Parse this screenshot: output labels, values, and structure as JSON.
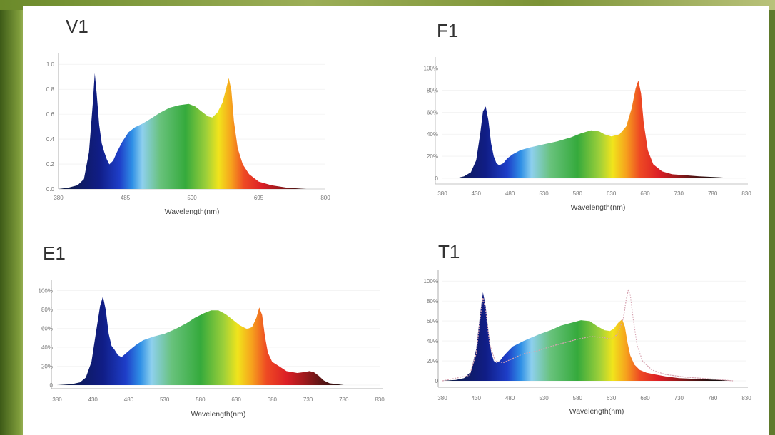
{
  "chart_data": [
    {
      "type": "area",
      "title": "V1",
      "xlabel": "Wavelength(nm)",
      "ylabel": "",
      "x_ticks": [
        "380",
        "485",
        "590",
        "695",
        "800"
      ],
      "y_ticks": [
        "0.0",
        "0.2",
        "0.4",
        "0.6",
        "0.8",
        "1.0"
      ],
      "xlim": [
        380,
        800
      ],
      "ylim": [
        0,
        1.1
      ],
      "x": [
        380,
        395,
        410,
        420,
        428,
        434,
        437,
        440,
        444,
        448,
        452,
        456,
        460,
        466,
        472,
        480,
        490,
        500,
        512,
        525,
        540,
        555,
        570,
        585,
        595,
        605,
        615,
        622,
        630,
        638,
        644,
        648,
        652,
        656,
        662,
        670,
        680,
        695,
        715,
        740,
        770
      ],
      "values": [
        0,
        0.01,
        0.03,
        0.08,
        0.3,
        0.7,
        0.94,
        0.78,
        0.52,
        0.37,
        0.3,
        0.24,
        0.2,
        0.23,
        0.3,
        0.38,
        0.46,
        0.5,
        0.53,
        0.57,
        0.62,
        0.66,
        0.68,
        0.69,
        0.67,
        0.63,
        0.59,
        0.58,
        0.62,
        0.7,
        0.82,
        0.9,
        0.8,
        0.55,
        0.33,
        0.2,
        0.12,
        0.06,
        0.03,
        0.01,
        0
      ]
    },
    {
      "type": "area",
      "title": "F1",
      "xlabel": "Wavelength(nm)",
      "ylabel": "",
      "x_ticks": [
        "380",
        "430",
        "480",
        "530",
        "580",
        "630",
        "680",
        "730",
        "780",
        "830"
      ],
      "y_ticks": [
        "0",
        "20%",
        "40%",
        "60%",
        "80%",
        "100%"
      ],
      "xlim": [
        380,
        830
      ],
      "ylim": [
        0,
        120
      ],
      "x": [
        400,
        412,
        422,
        430,
        436,
        440,
        444,
        448,
        452,
        456,
        460,
        464,
        470,
        476,
        484,
        495,
        510,
        530,
        550,
        570,
        585,
        600,
        612,
        620,
        630,
        642,
        652,
        660,
        666,
        670,
        674,
        678,
        684,
        692,
        705,
        720,
        740,
        760,
        790,
        810
      ],
      "values": [
        0,
        2,
        6,
        18,
        45,
        67,
        72,
        58,
        35,
        22,
        15,
        13,
        15,
        20,
        24,
        28,
        31,
        34,
        37,
        41,
        45,
        48,
        47,
        44,
        42,
        44,
        52,
        70,
        90,
        98,
        85,
        55,
        28,
        14,
        7,
        4,
        3,
        2,
        1,
        0
      ]
    },
    {
      "type": "area",
      "title": "E1",
      "xlabel": "Wavelength(nm)",
      "ylabel": "",
      "x_ticks": [
        "380",
        "430",
        "480",
        "530",
        "580",
        "630",
        "680",
        "730",
        "780",
        "830"
      ],
      "y_ticks": [
        "0",
        "20%",
        "40%",
        "60%",
        "80%",
        "100%"
      ],
      "xlim": [
        380,
        830
      ],
      "ylim": [
        0,
        110
      ],
      "x": [
        380,
        400,
        412,
        420,
        428,
        434,
        440,
        444,
        448,
        452,
        456,
        460,
        465,
        470,
        476,
        482,
        490,
        500,
        515,
        530,
        545,
        560,
        572,
        585,
        595,
        605,
        615,
        625,
        635,
        645,
        652,
        658,
        662,
        666,
        670,
        674,
        680,
        690,
        700,
        715,
        725,
        732,
        738,
        745,
        752,
        760,
        780,
        800
      ],
      "values": [
        0,
        1,
        3,
        8,
        25,
        55,
        85,
        95,
        80,
        55,
        42,
        38,
        32,
        30,
        34,
        38,
        43,
        48,
        52,
        55,
        60,
        66,
        72,
        77,
        80,
        80,
        76,
        70,
        64,
        60,
        62,
        72,
        83,
        75,
        52,
        35,
        25,
        20,
        15,
        13,
        14,
        15,
        14,
        10,
        5,
        2,
        0,
        0
      ]
    },
    {
      "type": "area",
      "title": "T1",
      "xlabel": "Wavelength(nm)",
      "ylabel": "",
      "x_ticks": [
        "380",
        "430",
        "480",
        "530",
        "580",
        "630",
        "680",
        "730",
        "780",
        "830"
      ],
      "y_ticks": [
        "0",
        "20%",
        "40%",
        "60%",
        "80%",
        "100%"
      ],
      "xlim": [
        380,
        830
      ],
      "ylim": [
        0,
        120
      ],
      "x": [
        380,
        400,
        412,
        422,
        430,
        436,
        440,
        444,
        448,
        452,
        456,
        460,
        465,
        470,
        476,
        484,
        492,
        500,
        512,
        525,
        540,
        555,
        570,
        585,
        598,
        610,
        620,
        628,
        634,
        640,
        646,
        650,
        654,
        658,
        664,
        672,
        682,
        695,
        710,
        730,
        760,
        790,
        810
      ],
      "values": [
        0,
        1,
        3,
        10,
        35,
        75,
        98,
        82,
        55,
        32,
        22,
        20,
        22,
        27,
        32,
        38,
        41,
        44,
        48,
        52,
        56,
        61,
        64,
        67,
        66,
        60,
        56,
        55,
        58,
        64,
        68,
        60,
        42,
        28,
        18,
        12,
        9,
        7,
        5,
        3,
        2,
        1,
        0
      ],
      "series": [
        {
          "name": "",
          "x": [
            380,
            420,
            430,
            436,
            440,
            444,
            450,
            458,
            470,
            485,
            500,
            520,
            540,
            560,
            580,
            600,
            618,
            630,
            640,
            648,
            652,
            655,
            658,
            662,
            668,
            676,
            690,
            710,
            740,
            780,
            810
          ],
          "values": [
            0,
            6,
            30,
            70,
            92,
            78,
            40,
            22,
            20,
            25,
            30,
            33,
            38,
            42,
            46,
            49,
            48,
            46,
            52,
            70,
            90,
            100,
            95,
            70,
            40,
            22,
            12,
            7,
            4,
            2,
            0
          ]
        }
      ]
    }
  ]
}
